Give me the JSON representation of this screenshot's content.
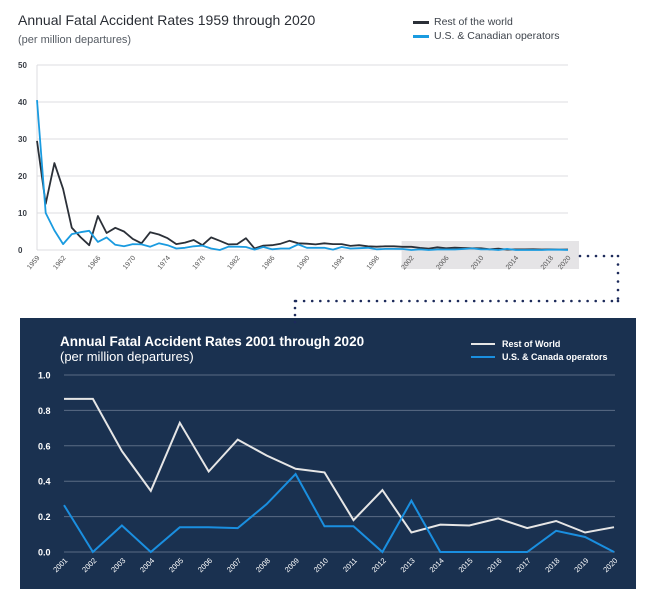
{
  "colors": {
    "rest_top": "#2b3038",
    "us_top": "#1a9be0",
    "rest_bottom": "#e6e6e6",
    "us_bottom": "#1a8fe0",
    "panel_bg": "#1a3150",
    "connector": "#1c2a5a",
    "highlight": "#e5e4e6"
  },
  "chart_data": [
    {
      "type": "line",
      "title": "Annual Fatal Accident Rates 1959 through 2020",
      "subtitle": "(per million departures)",
      "xlabel": "",
      "ylabel": "",
      "ylim": [
        0,
        50
      ],
      "yticks": [
        "0",
        "10",
        "20",
        "30",
        "40",
        "50"
      ],
      "ytick_values": [
        0,
        10,
        20,
        30,
        40,
        50
      ],
      "xlim": [
        1959,
        2020
      ],
      "xticks": [
        "1959",
        "1962",
        "1966",
        "1970",
        "1974",
        "1978",
        "1982",
        "1986",
        "1990",
        "1994",
        "1998",
        "2002",
        "2006",
        "2010",
        "2014",
        "2018",
        "2020"
      ],
      "xtick_values": [
        1959,
        1962,
        1966,
        1970,
        1974,
        1978,
        1982,
        1986,
        1990,
        1994,
        1998,
        2002,
        2006,
        2010,
        2014,
        2018,
        2020
      ],
      "grid": true,
      "legend_position": "top-right",
      "highlight_range": [
        2001,
        2020
      ],
      "x": [
        1959,
        1960,
        1961,
        1962,
        1963,
        1964,
        1965,
        1966,
        1967,
        1968,
        1969,
        1970,
        1971,
        1972,
        1973,
        1974,
        1975,
        1976,
        1977,
        1978,
        1979,
        1980,
        1981,
        1982,
        1983,
        1984,
        1985,
        1986,
        1987,
        1988,
        1989,
        1990,
        1991,
        1992,
        1993,
        1994,
        1995,
        1996,
        1997,
        1998,
        1999,
        2000,
        2001,
        2002,
        2003,
        2004,
        2005,
        2006,
        2007,
        2008,
        2009,
        2010,
        2011,
        2012,
        2013,
        2014,
        2015,
        2016,
        2017,
        2018,
        2019,
        2020
      ],
      "series": [
        {
          "name": "Rest of the world",
          "color_key": "rest_top",
          "values": [
            29.5,
            12.5,
            23.5,
            16.5,
            6,
            3.5,
            1.3,
            9.2,
            4.6,
            6,
            5,
            3,
            1.8,
            4.8,
            4.2,
            3.2,
            1.6,
            2,
            2.7,
            1.3,
            3.4,
            2.5,
            1.5,
            1.6,
            3.2,
            0.4,
            1.2,
            1.3,
            1.7,
            2.5,
            1.8,
            1.7,
            1.5,
            1.8,
            1.6,
            1.6,
            1.1,
            1.3,
            1,
            0.9,
            1,
            1,
            0.87,
            0.87,
            0.57,
            0.35,
            0.73,
            0.46,
            0.63,
            0.55,
            0.47,
            0.45,
            0.19,
            0.35,
            0.11,
            0.16,
            0.15,
            0.19,
            0.14,
            0.17,
            0.11,
            0.14
          ]
        },
        {
          "name": "U.S. & Canadian operators",
          "color_key": "us_top",
          "values": [
            40.5,
            10,
            5.3,
            1.6,
            4.3,
            4.8,
            5.2,
            2.2,
            3.4,
            1.4,
            1,
            1.6,
            1.5,
            0.9,
            1.8,
            1.3,
            0.4,
            0.6,
            1,
            1.2,
            0.4,
            0,
            0.9,
            0.9,
            0.8,
            0.1,
            0.8,
            0.2,
            0.4,
            0.4,
            1.5,
            0.6,
            0.6,
            0.6,
            0.1,
            0.8,
            0.4,
            0.5,
            0.6,
            0.2,
            0.3,
            0.3,
            0.27,
            0,
            0.15,
            0,
            0.14,
            0.14,
            0.14,
            0.27,
            0.44,
            0.15,
            0.15,
            0,
            0.29,
            0,
            0,
            0,
            0,
            0.12,
            0.09,
            0
          ]
        }
      ]
    },
    {
      "type": "line",
      "title": "Annual Fatal Accident Rates 2001 through 2020",
      "subtitle": "(per million departures)",
      "xlabel": "",
      "ylabel": "",
      "ylim": [
        0,
        1.0
      ],
      "yticks": [
        "0.0",
        "0.2",
        "0.4",
        "0.6",
        "0.8",
        "1.0"
      ],
      "ytick_values": [
        0,
        0.2,
        0.4,
        0.6,
        0.8,
        1.0
      ],
      "grid": true,
      "legend_position": "top-right",
      "categories": [
        "2001",
        "2002",
        "2003",
        "2004",
        "2005",
        "2006",
        "2007",
        "2008",
        "2009",
        "2010",
        "2011",
        "2012",
        "2013",
        "2014",
        "2015",
        "2016",
        "2017",
        "2018",
        "2019",
        "2020"
      ],
      "series": [
        {
          "name": "Rest of World",
          "color_key": "rest_bottom",
          "values": [
            0.865,
            0.865,
            0.57,
            0.345,
            0.73,
            0.455,
            0.635,
            0.545,
            0.47,
            0.45,
            0.18,
            0.35,
            0.11,
            0.155,
            0.15,
            0.19,
            0.135,
            0.175,
            0.11,
            0.14
          ]
        },
        {
          "name": "U.S. & Canada operators",
          "color_key": "us_bottom",
          "values": [
            0.265,
            0,
            0.15,
            0,
            0.14,
            0.14,
            0.135,
            0.27,
            0.44,
            0.145,
            0.145,
            0,
            0.29,
            0,
            0,
            0,
            0,
            0.12,
            0.085,
            0
          ]
        }
      ]
    }
  ]
}
